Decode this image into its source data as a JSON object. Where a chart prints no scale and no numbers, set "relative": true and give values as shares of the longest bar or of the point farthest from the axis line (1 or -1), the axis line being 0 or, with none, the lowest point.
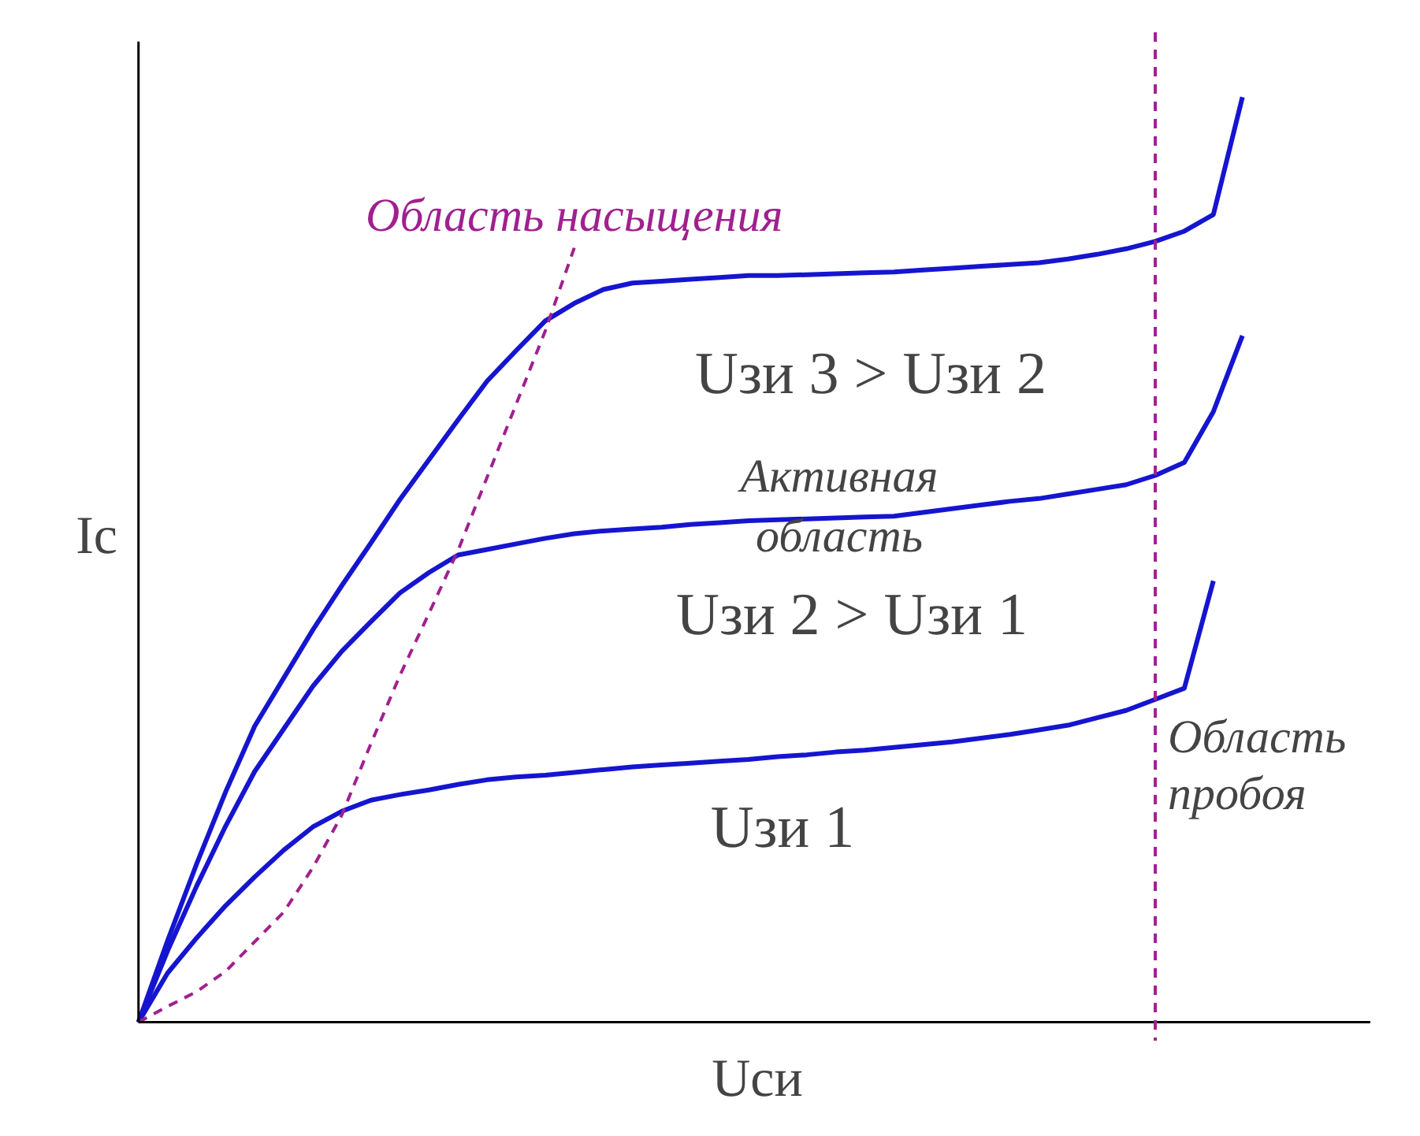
{
  "chart_data": {
    "type": "line",
    "relative": true,
    "xlabel": "Uси",
    "ylabel": "Iс",
    "grid": false,
    "categories": [
      null,
      null,
      null,
      null,
      null,
      null,
      null,
      null,
      null,
      null,
      null,
      null,
      null,
      null,
      null,
      null,
      null,
      null,
      null,
      null,
      null,
      null,
      null,
      null,
      null,
      null,
      null,
      null,
      null,
      null,
      null,
      null,
      null,
      null,
      null,
      null,
      null,
      null,
      null
    ],
    "series": [
      {
        "color": "#1515d0",
        "values": [
          0,
          0.053,
          0.091,
          0.126,
          0.157,
          0.186,
          0.211,
          0.228,
          0.24,
          0.246,
          0.251,
          0.257,
          0.262,
          0.265,
          0.267,
          0.27,
          0.273,
          0.276,
          0.278,
          0.28,
          0.282,
          0.284,
          0.287,
          0.289,
          0.292,
          0.294,
          0.297,
          0.3,
          0.303,
          0.307,
          0.311,
          0.316,
          0.321,
          0.329,
          0.337,
          0.349,
          0.361,
          0.477,
          null
        ]
      },
      {
        "color": "#1515d0",
        "values": [
          0,
          0.077,
          0.147,
          0.212,
          0.271,
          0.317,
          0.363,
          0.401,
          0.433,
          0.464,
          0.486,
          0.505,
          0.511,
          0.517,
          0.523,
          0.528,
          0.531,
          0.533,
          0.535,
          0.538,
          0.54,
          0.542,
          0.543,
          0.544,
          0.545,
          0.546,
          0.547,
          0.551,
          0.555,
          0.559,
          0.563,
          0.566,
          0.571,
          0.576,
          0.581,
          0.591,
          0.605,
          0.66,
          0.742
        ]
      },
      {
        "color": "#1515d0",
        "values": [
          0,
          0.088,
          0.171,
          0.249,
          0.32,
          0.372,
          0.424,
          0.472,
          0.518,
          0.565,
          0.608,
          0.651,
          0.693,
          0.726,
          0.758,
          0.777,
          0.792,
          0.799,
          0.801,
          0.803,
          0.805,
          0.807,
          0.807,
          0.808,
          0.809,
          0.81,
          0.811,
          0.813,
          0.815,
          0.817,
          0.819,
          0.821,
          0.825,
          0.83,
          0.836,
          0.844,
          0.855,
          0.873,
          1
        ]
      },
      {
        "name": "Область насыщения",
        "color": "#a02090",
        "line_style": "dashed",
        "values": [
          0,
          0.017,
          0.033,
          0.055,
          0.087,
          0.119,
          0.167,
          0.224,
          0.301,
          0.375,
          0.442,
          0.51,
          0.589,
          0.668,
          0.747,
          0.837,
          null,
          null,
          null,
          null,
          null,
          null,
          null,
          null,
          null,
          null,
          null,
          null,
          null,
          null,
          null,
          null,
          null,
          null,
          null,
          null,
          null,
          null,
          null
        ]
      }
    ],
    "ref_lines": [
      {
        "axis": "x",
        "label": "Область пробоя",
        "color": "#a02090",
        "line_style": "dashed"
      }
    ],
    "annotations": [
      "Uзи 3 > Uзи 2",
      "Активная область",
      "Uзи 2 > Uзи 1",
      "Uзи 1"
    ]
  }
}
